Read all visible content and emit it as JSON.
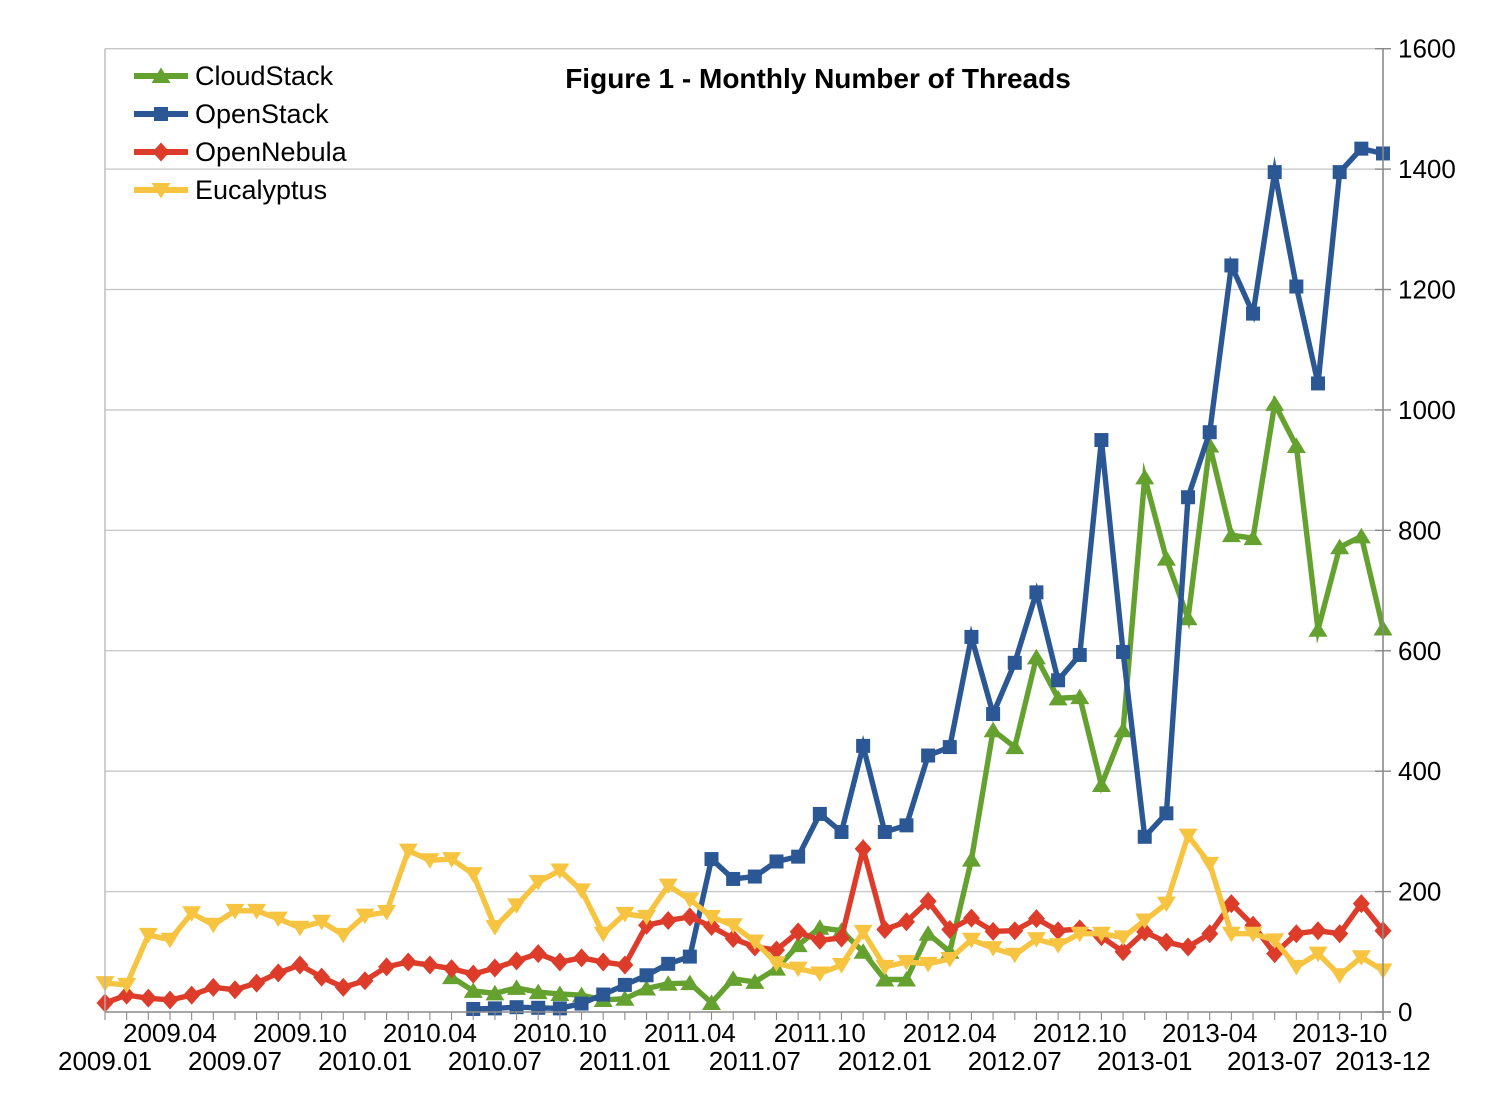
{
  "chart_data": {
    "type": "line",
    "title": "Figure 1 - Monthly Number of Threads",
    "x_start_label": "2009.01",
    "x_end_label": "2013-12",
    "n_points": 60,
    "ylim": [
      0,
      1600
    ],
    "y_tick_step": 200,
    "y_axis_side": "right",
    "grid": "horizontal",
    "legend_position": "top-left",
    "x_tick_rows": [
      [
        {
          "m": 3,
          "label": "2009.04"
        },
        {
          "m": 9,
          "label": "2009.10"
        },
        {
          "m": 15,
          "label": "2010.04"
        },
        {
          "m": 21,
          "label": "2010.10"
        },
        {
          "m": 27,
          "label": "2011.04"
        },
        {
          "m": 33,
          "label": "2011.10"
        },
        {
          "m": 39,
          "label": "2012.04"
        },
        {
          "m": 45,
          "label": "2012.10"
        },
        {
          "m": 51,
          "label": "2013-04"
        },
        {
          "m": 57,
          "label": "2013-10"
        }
      ],
      [
        {
          "m": 0,
          "label": "2009.01"
        },
        {
          "m": 6,
          "label": "2009.07"
        },
        {
          "m": 12,
          "label": "2010.01"
        },
        {
          "m": 18,
          "label": "2010.07"
        },
        {
          "m": 24,
          "label": "2011.01"
        },
        {
          "m": 30,
          "label": "2011.07"
        },
        {
          "m": 36,
          "label": "2012.01"
        },
        {
          "m": 42,
          "label": "2012.07"
        },
        {
          "m": 48,
          "label": "2013-01"
        },
        {
          "m": 54,
          "label": "2013-07"
        },
        {
          "m": 59,
          "label": "2013-12"
        }
      ]
    ],
    "series": [
      {
        "name": "CloudStack",
        "color": "#64A12F",
        "marker": "triangle-up",
        "values": [
          null,
          null,
          null,
          null,
          null,
          null,
          null,
          null,
          null,
          null,
          null,
          null,
          null,
          null,
          null,
          null,
          58,
          35,
          31,
          40,
          33,
          30,
          28,
          20,
          22,
          39,
          47,
          48,
          15,
          55,
          50,
          72,
          111,
          140,
          135,
          100,
          54,
          54,
          130,
          100,
          253,
          468,
          440,
          589,
          521,
          523,
          377,
          468,
          888,
          753,
          654,
          941,
          792,
          787,
          1010,
          940,
          635,
          772,
          790,
          637
        ]
      },
      {
        "name": "OpenStack",
        "color": "#2B5894",
        "marker": "square",
        "values": [
          null,
          null,
          null,
          null,
          null,
          null,
          null,
          null,
          null,
          null,
          null,
          null,
          null,
          null,
          null,
          null,
          null,
          5,
          6,
          8,
          7,
          6,
          14,
          29,
          45,
          61,
          80,
          92,
          254,
          221,
          225,
          250,
          258,
          329,
          299,
          442,
          299,
          310,
          426,
          440,
          623,
          495,
          580,
          697,
          551,
          593,
          950,
          598,
          291,
          330,
          855,
          963,
          1240,
          1160,
          1395,
          1205,
          1044,
          1395,
          1434,
          1426
        ]
      },
      {
        "name": "OpenNebula",
        "color": "#DE3C2B",
        "marker": "diamond",
        "values": [
          15,
          28,
          23,
          20,
          28,
          41,
          37,
          48,
          65,
          78,
          58,
          41,
          52,
          75,
          83,
          78,
          72,
          63,
          73,
          85,
          97,
          83,
          90,
          83,
          78,
          144,
          152,
          158,
          142,
          122,
          108,
          103,
          133,
          119,
          123,
          271,
          137,
          150,
          184,
          137,
          156,
          134,
          135,
          155,
          135,
          138,
          125,
          100,
          133,
          116,
          108,
          130,
          180,
          144,
          97,
          130,
          135,
          130,
          180,
          135
        ]
      },
      {
        "name": "Eucalyptus",
        "color": "#F6C440",
        "marker": "triangle-down",
        "values": [
          48,
          45,
          128,
          120,
          164,
          145,
          168,
          168,
          155,
          140,
          150,
          128,
          160,
          166,
          268,
          252,
          254,
          229,
          141,
          177,
          216,
          235,
          202,
          130,
          163,
          158,
          210,
          187,
          158,
          144,
          117,
          81,
          72,
          64,
          78,
          133,
          75,
          83,
          80,
          88,
          120,
          106,
          95,
          121,
          111,
          130,
          130,
          124,
          152,
          180,
          293,
          246,
          130,
          130,
          119,
          75,
          97,
          61,
          91,
          69
        ]
      }
    ]
  }
}
